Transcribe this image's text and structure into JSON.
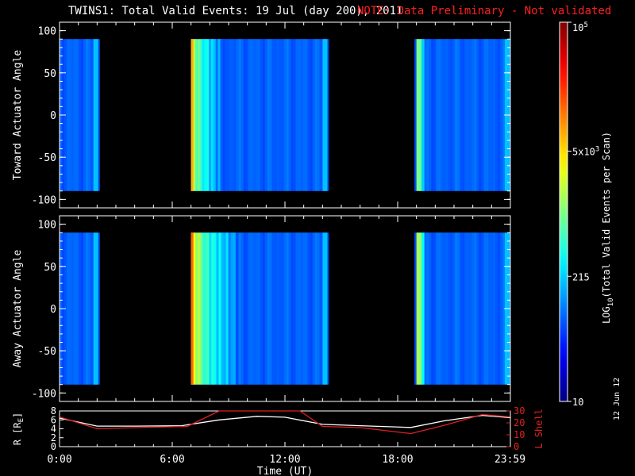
{
  "title": "TWINS1: Total Valid Events: 19 Jul (day 200), 2011",
  "note": "NOTE: Data Preliminary - Not validated",
  "stamp": "12 Jun 12",
  "colors": {
    "background": "#000000",
    "note": "#ff2020",
    "r_trace": "#ffffff",
    "l_trace": "#e02020"
  },
  "chart_data": [
    {
      "type": "heatmap",
      "ylabel": "Toward Actuator Angle",
      "ylim": [
        -110,
        110
      ],
      "y_ticks": [
        100,
        50,
        0,
        -50,
        -100
      ],
      "data_range": [
        -90,
        90
      ],
      "x_hours": [
        0,
        24
      ],
      "coverage_hours": [
        [
          0,
          2.1
        ],
        [
          7.0,
          14.3
        ],
        [
          18.9,
          24
        ]
      ],
      "hotspots_hours": [
        {
          "t": [
            7.0,
            7.7
          ],
          "level": 0.55
        },
        {
          "t": [
            7.7,
            8.8
          ],
          "level": 0.38
        },
        {
          "t": [
            19.0,
            19.4
          ],
          "level": 0.5
        }
      ],
      "base_level": 0.22
    },
    {
      "type": "heatmap",
      "ylabel": "Away Actuator Angle",
      "ylim": [
        -110,
        110
      ],
      "y_ticks": [
        100,
        50,
        0,
        -50,
        -100
      ],
      "data_range": [
        -90,
        90
      ],
      "x_hours": [
        0,
        24
      ],
      "coverage_hours": [
        [
          0,
          2.1
        ],
        [
          7.0,
          14.3
        ],
        [
          18.9,
          24
        ]
      ],
      "hotspots_hours": [
        {
          "t": [
            7.0,
            7.7
          ],
          "level": 0.62
        },
        {
          "t": [
            7.7,
            9.5
          ],
          "level": 0.42
        },
        {
          "t": [
            19.0,
            19.4
          ],
          "level": 0.55
        }
      ],
      "base_level": 0.22
    },
    {
      "type": "colorbar",
      "label_parts": [
        "LOG",
        "10",
        "(Total Valid Events per Scan)"
      ],
      "ticks": [
        {
          "label_base": "10",
          "label_exp": "5",
          "frac": 1.0
        },
        {
          "label_base": "5x10",
          "label_exp": "3",
          "frac": 0.66
        },
        {
          "label_base": "215",
          "label_exp": "",
          "frac": 0.33
        },
        {
          "label_base": "10",
          "label_exp": "",
          "frac": 0.0
        }
      ]
    },
    {
      "type": "line",
      "ylabel_left": "R [R",
      "ylabel_left_sub": "E",
      "ylabel_left_end": "]",
      "ylabel_right": "L Shell",
      "left_ticks": [
        8,
        6,
        4,
        2,
        0
      ],
      "right_ticks": [
        30,
        20,
        10,
        0
      ],
      "ylim_left": [
        0,
        8
      ],
      "ylim_right": [
        0,
        30
      ],
      "xlabel": "Time (UT)",
      "x_tick_labels": [
        "0:00",
        "6:00",
        "12:00",
        "18:00",
        "23:59"
      ],
      "x_tick_hours": [
        0,
        6,
        12,
        18,
        23.98
      ],
      "series": [
        {
          "color": "#ffffff",
          "axis": "left",
          "points": [
            [
              0,
              6.4
            ],
            [
              2,
              4.6
            ],
            [
              4,
              4.6
            ],
            [
              6.5,
              4.7
            ],
            [
              8.5,
              6.0
            ],
            [
              10.5,
              6.8
            ],
            [
              12,
              6.6
            ],
            [
              14,
              5.0
            ],
            [
              16,
              4.7
            ],
            [
              18.7,
              4.3
            ],
            [
              20.5,
              5.8
            ],
            [
              22.5,
              7.0
            ],
            [
              23.98,
              6.5
            ]
          ]
        },
        {
          "color": "#e02020",
          "axis": "right",
          "points": [
            [
              0,
              25.0
            ],
            [
              2,
              15.0
            ],
            [
              4,
              16.0
            ],
            [
              6.8,
              17.0
            ],
            [
              8.5,
              30.0
            ],
            [
              12.8,
              30.0
            ],
            [
              14,
              17.0
            ],
            [
              16,
              16.0
            ],
            [
              18.7,
              11.0
            ],
            [
              20.5,
              18.0
            ],
            [
              22.5,
              27.0
            ],
            [
              23.98,
              25.0
            ]
          ]
        }
      ]
    }
  ]
}
